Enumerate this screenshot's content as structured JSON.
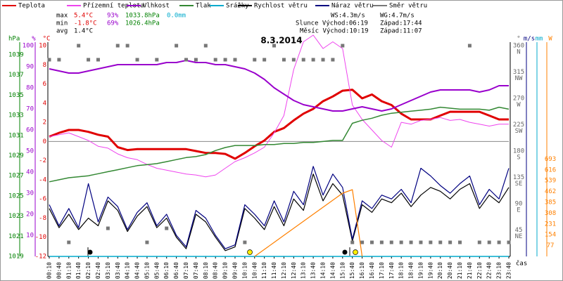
{
  "chart_data": {
    "type": "line",
    "title": "8.3.2014",
    "stats": {
      "max": {
        "label": "max",
        "temp": "5.4°C",
        "hum": "93%",
        "press": "1033.8hPa",
        "rain": "0.0mm"
      },
      "min": {
        "label": "min",
        "temp": "-1.8°C",
        "hum": "69%",
        "press": "1026.4hPa"
      },
      "avg": {
        "label": "avg",
        "temp": "1.4°C"
      },
      "ws": "WS:4.3m/s",
      "wg": "WG:4.7m/s",
      "sun": {
        "rise": "Slunce Východ:06:19",
        "set": "Západ:17:44"
      },
      "moon": {
        "rise": "Měsíc Východ:10:19",
        "set": "Západ:11:07"
      }
    },
    "x_label": "čas",
    "categories": [
      "00:10",
      "00:40",
      "01:10",
      "01:40",
      "02:10",
      "02:40",
      "03:10",
      "03:40",
      "04:10",
      "04:40",
      "05:10",
      "05:40",
      "06:10",
      "06:40",
      "07:10",
      "07:40",
      "08:10",
      "08:40",
      "09:10",
      "09:40",
      "10:10",
      "10:40",
      "11:10",
      "11:40",
      "12:10",
      "12:40",
      "13:10",
      "13:40",
      "14:10",
      "14:40",
      "15:10",
      "15:40",
      "16:10",
      "16:40",
      "17:10",
      "17:40",
      "18:10",
      "18:40",
      "19:10",
      "19:40",
      "20:10",
      "20:40",
      "21:10",
      "21:40",
      "22:10",
      "22:40",
      "23:10",
      "23:40"
    ],
    "axes": {
      "press": {
        "label": "hPa",
        "color": "#008000",
        "lim": [
          1019,
          1039.9
        ],
        "ticks": [
          1019,
          1021,
          1023,
          1025,
          1027,
          1029,
          1031,
          1033,
          1035,
          1037,
          1039
        ]
      },
      "hum": {
        "label": "%",
        "color": "#9900cc",
        "lim": [
          0,
          100
        ],
        "ticks": [
          10,
          20,
          30,
          40,
          50,
          60,
          70,
          80,
          90,
          100
        ]
      },
      "temp": {
        "label": "°C",
        "color": "#e00000",
        "lim": [
          -12,
          10
        ],
        "ticks": [
          -12,
          -10,
          -8,
          -6,
          -4,
          -2,
          0,
          2,
          4,
          6,
          8,
          10
        ]
      },
      "dir": {
        "label": "°",
        "color": "#666666",
        "lim": [
          0,
          360
        ],
        "ticks": [
          45,
          90,
          135,
          180,
          225,
          270,
          315,
          360
        ],
        "tick_names": [
          "NE",
          "E",
          "SE",
          "S",
          "SW",
          "W",
          "NW",
          "N"
        ]
      },
      "wind": {
        "label": "m/s",
        "color": "#000080",
        "lim": [
          0,
          11
        ]
      },
      "rain": {
        "label": "mm",
        "color": "#00aacc",
        "lim": [
          0,
          1
        ]
      },
      "rad": {
        "label": "W",
        "color": "#ff8000",
        "lim": [
          0,
          1500
        ],
        "ticks": [
          77,
          154,
          231,
          308,
          385,
          462,
          539,
          616,
          693
        ]
      }
    },
    "zero_line": 0,
    "series": [
      {
        "name": "Teplota",
        "color": "#e00000",
        "axis": "temp",
        "width": 3,
        "values": [
          0.5,
          0.9,
          1.2,
          1.2,
          1.0,
          0.7,
          0.5,
          -0.6,
          -0.9,
          -0.8,
          -0.8,
          -0.8,
          -0.8,
          -0.8,
          -0.8,
          -1.0,
          -1.2,
          -1.2,
          -1.3,
          -1.8,
          -1.2,
          -0.5,
          0.1,
          1.0,
          1.4,
          2.2,
          2.9,
          3.4,
          4.2,
          4.7,
          5.3,
          5.4,
          4.5,
          4.9,
          4.2,
          3.8,
          2.9,
          2.3,
          2.3,
          2.3,
          2.7,
          3.1,
          3.1,
          3.1,
          3.1,
          2.7,
          2.3,
          2.3
        ]
      },
      {
        "name": "Přízemní teplota",
        "color": "#ee44ee",
        "axis": "temp",
        "width": 1,
        "values": [
          0.5,
          0.7,
          0.9,
          0.5,
          0.1,
          -0.5,
          -0.7,
          -1.3,
          -1.7,
          -1.9,
          -2.4,
          -2.8,
          -3.0,
          -3.2,
          -3.4,
          -3.5,
          -3.7,
          -3.5,
          -2.8,
          -2.1,
          -1.7,
          -1.2,
          -0.6,
          0.9,
          2.7,
          7.5,
          10.4,
          11.1,
          9.7,
          10.4,
          9.7,
          3.8,
          2.3,
          1.2,
          0.1,
          -0.6,
          2.0,
          1.8,
          2.2,
          2.3,
          2.5,
          2.2,
          2.3,
          2.0,
          1.8,
          1.6,
          1.8,
          1.8
        ]
      },
      {
        "name": "Vlhkost",
        "color": "#9900cc",
        "axis": "hum",
        "width": 2,
        "values": [
          89,
          88,
          87,
          87,
          88,
          89,
          90,
          91,
          91,
          91,
          91,
          91,
          92,
          92,
          93,
          92,
          92,
          91,
          91,
          90,
          89,
          87,
          84,
          80,
          77,
          74,
          72,
          71,
          70,
          69,
          69,
          70,
          71,
          70,
          69,
          70,
          72,
          74,
          76,
          78,
          79,
          79,
          79,
          79,
          78,
          79,
          81,
          81
        ]
      },
      {
        "name": "Tlak",
        "color": "#338833",
        "axis": "press",
        "width": 1.5,
        "values": [
          1026.4,
          1026.6,
          1026.8,
          1026.9,
          1027.0,
          1027.2,
          1027.4,
          1027.6,
          1027.8,
          1028.0,
          1028.1,
          1028.2,
          1028.4,
          1028.6,
          1028.8,
          1028.9,
          1029.1,
          1029.5,
          1029.8,
          1030.0,
          1030.0,
          1030.0,
          1030.1,
          1030.1,
          1030.2,
          1030.2,
          1030.3,
          1030.3,
          1030.4,
          1030.5,
          1030.5,
          1032.2,
          1032.5,
          1032.7,
          1033.0,
          1033.2,
          1033.3,
          1033.4,
          1033.5,
          1033.6,
          1033.8,
          1033.7,
          1033.6,
          1033.6,
          1033.6,
          1033.5,
          1033.8,
          1033.6
        ]
      },
      {
        "name": "Srážky",
        "color": "#00aacc",
        "axis": "rain",
        "width": 1.5,
        "values": [
          0,
          0,
          0,
          0,
          0,
          0,
          0,
          0,
          0,
          0,
          0,
          0,
          0,
          0,
          0,
          0,
          0,
          0,
          0,
          0,
          0,
          0,
          0,
          0,
          0,
          0,
          0,
          0,
          0,
          0,
          0,
          0,
          0,
          0,
          0,
          0,
          0,
          0,
          0,
          0,
          0,
          0,
          0,
          0,
          0,
          0,
          0,
          0
        ]
      },
      {
        "name": "Rychlost větru",
        "color": "#000000",
        "axis": "wind",
        "width": 1.2,
        "values": [
          2.5,
          1.5,
          2.2,
          1.4,
          2.0,
          1.6,
          2.9,
          2.4,
          1.3,
          2.1,
          2.6,
          1.5,
          2.0,
          1.0,
          0.4,
          2.2,
          1.8,
          1.0,
          0.3,
          0.5,
          2.5,
          2.0,
          1.4,
          2.6,
          1.6,
          3.0,
          2.4,
          4.3,
          2.9,
          3.8,
          3.2,
          0.8,
          2.7,
          2.3,
          3.0,
          2.8,
          3.3,
          2.6,
          3.2,
          3.6,
          3.4,
          3.0,
          3.5,
          3.8,
          2.5,
          3.2,
          2.8,
          3.6
        ]
      },
      {
        "name": "Náraz větru",
        "color": "#000080",
        "axis": "wind",
        "width": 1.2,
        "values": [
          2.7,
          1.6,
          2.5,
          1.5,
          3.8,
          1.8,
          3.1,
          2.6,
          1.4,
          2.3,
          2.8,
          1.6,
          2.2,
          1.1,
          0.5,
          2.4,
          2.0,
          1.1,
          0.4,
          0.6,
          2.7,
          2.2,
          1.6,
          2.9,
          1.8,
          3.4,
          2.7,
          4.7,
          3.2,
          4.3,
          3.6,
          0.9,
          2.9,
          2.5,
          3.2,
          3.0,
          3.5,
          2.8,
          4.6,
          4.2,
          3.7,
          3.3,
          3.8,
          4.2,
          2.7,
          3.5,
          3.0,
          4.6
        ]
      },
      {
        "name": "Směr větru",
        "color": "#777777",
        "axis": "dir",
        "style": "squares",
        "values": [
          336,
          336,
          24,
          360,
          336,
          336,
          48,
          360,
          360,
          336,
          24,
          336,
          48,
          360,
          336,
          336,
          360,
          336,
          336,
          336,
          24,
          336,
          336,
          360,
          336,
          336,
          336,
          336,
          336,
          336,
          360,
          24,
          24,
          24,
          24,
          24,
          24,
          24,
          24,
          24,
          24,
          24,
          24,
          360,
          24,
          24,
          24,
          24
        ]
      },
      {
        "color": "#ff8000",
        "axis": "rad",
        "width": 1.2,
        "values": [
          null,
          null,
          null,
          null,
          null,
          null,
          null,
          null,
          null,
          null,
          null,
          null,
          null,
          null,
          null,
          null,
          null,
          null,
          null,
          null,
          null,
          0,
          50,
          100,
          150,
          200,
          250,
          300,
          350,
          400,
          450,
          475,
          0,
          null,
          null,
          null,
          null,
          null,
          null,
          null,
          null,
          null,
          null,
          null,
          null,
          null,
          null,
          null
        ]
      }
    ]
  }
}
